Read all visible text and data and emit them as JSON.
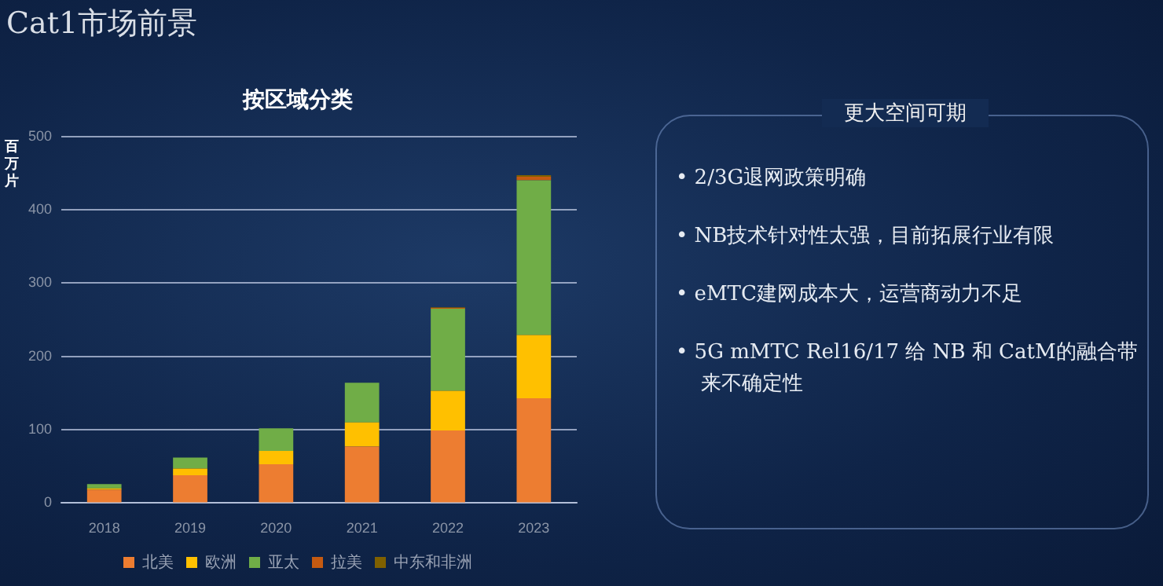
{
  "chart_data": [
    {
      "type": "bar",
      "title": "Cat1市场前景",
      "subtitle": "按区域分类",
      "ylabel": "百万片",
      "stacked": true,
      "categories": [
        "2018",
        "2019",
        "2020",
        "2021",
        "2022",
        "2023"
      ],
      "series": [
        {
          "name": "北美",
          "color": "#ed7d31",
          "values": [
            18,
            38,
            53,
            77,
            99,
            143
          ]
        },
        {
          "name": "欧洲",
          "color": "#ffc000",
          "values": [
            2,
            9,
            18,
            33,
            54,
            86
          ]
        },
        {
          "name": "亚太",
          "color": "#70ad47",
          "values": [
            6,
            15,
            31,
            54,
            112,
            211
          ]
        },
        {
          "name": "拉美",
          "color": "#c55a11",
          "values": [
            0,
            0,
            0,
            0,
            1,
            5
          ]
        },
        {
          "name": "中东和非洲",
          "color": "#7f6000",
          "values": [
            0,
            0,
            0,
            0,
            1,
            2
          ]
        }
      ],
      "ylim": [
        0,
        500
      ],
      "yticks": [
        0,
        100,
        200,
        300,
        400,
        500
      ],
      "grid": "y",
      "legend": "bottom"
    },
    {
      "type": "other",
      "title": "更大空间可期",
      "annotations": [
        "• 2/3G退网政策明确",
        "• NB技术针对性太强，目前拓展行业有限",
        "• eMTC建网成本大，运营商动力不足",
        "• 5G mMTC Rel16/17 给 NB 和 CatM的融合带来不确定性"
      ]
    }
  ]
}
